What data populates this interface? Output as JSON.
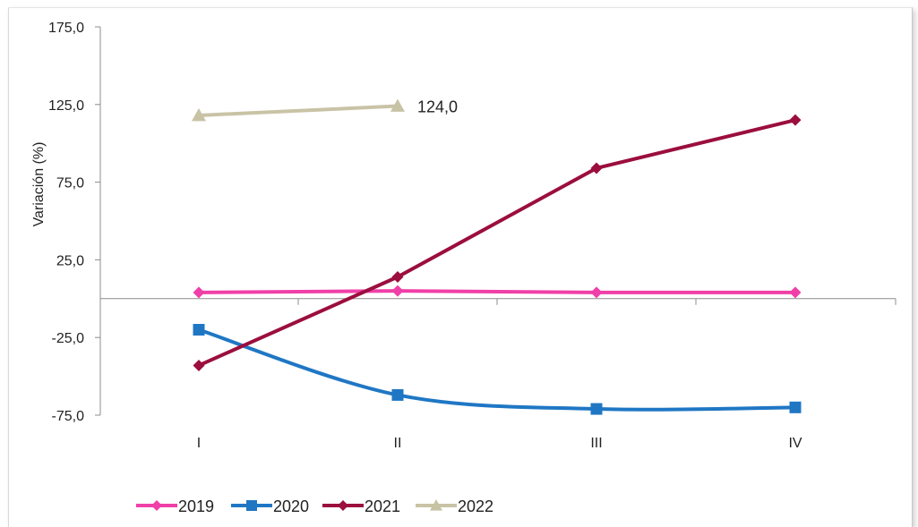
{
  "chart_data": {
    "type": "line",
    "title": "",
    "xlabel": "",
    "ylabel": "Variación (%)",
    "categories": [
      "I",
      "II",
      "III",
      "IV"
    ],
    "ylim": [
      -75,
      175
    ],
    "yticks": [
      "-75,0",
      "-25,0",
      "25,0",
      "75,0",
      "125,0",
      "175,0"
    ],
    "ytick_values": [
      -75,
      -25,
      25,
      75,
      125,
      175
    ],
    "grid": false,
    "legend_position": "bottom-left",
    "series": [
      {
        "name": "2019",
        "color": "#f03fa8",
        "marker": "diamond",
        "values": [
          4,
          5,
          4,
          4
        ]
      },
      {
        "name": "2020",
        "color": "#1f77c4",
        "marker": "square",
        "values": [
          -20,
          -62,
          -71,
          -70
        ]
      },
      {
        "name": "2021",
        "color": "#9b0e3e",
        "marker": "diamond",
        "values": [
          -43,
          14,
          84,
          115
        ]
      },
      {
        "name": "2022",
        "color": "#c9c3a6",
        "marker": "triangle",
        "values": [
          118,
          124,
          null,
          null
        ]
      }
    ],
    "annotations": [
      {
        "series": "2022",
        "category": "II",
        "text": "124,0"
      }
    ]
  }
}
